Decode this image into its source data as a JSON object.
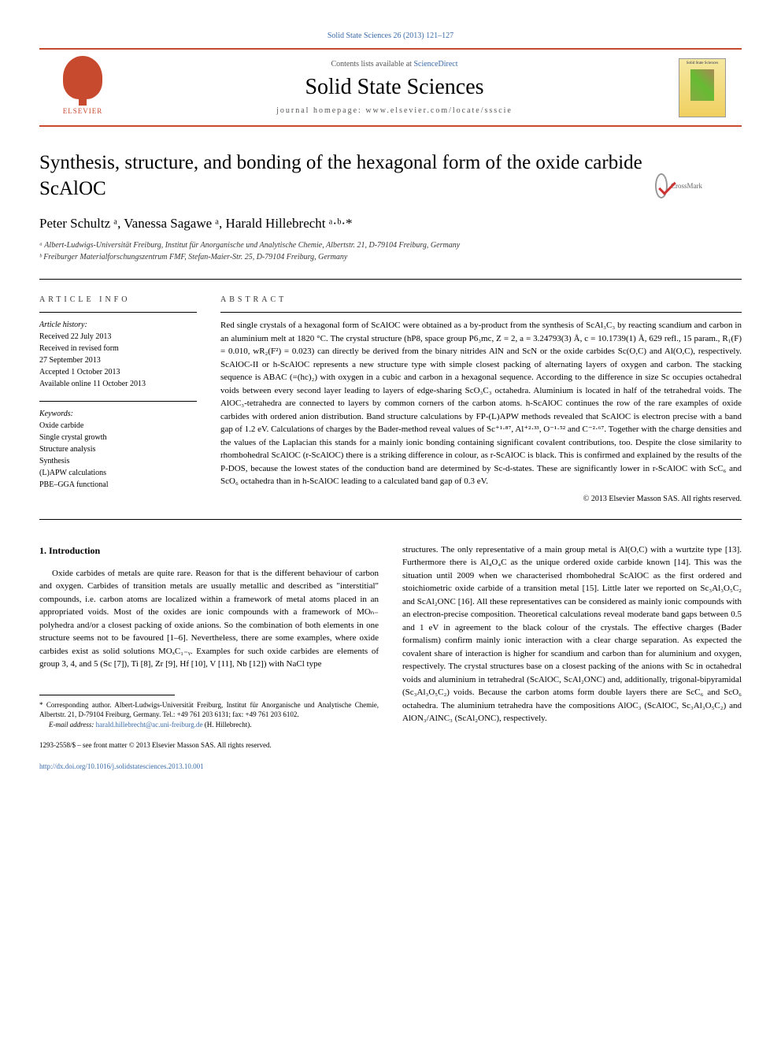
{
  "top_link": "Solid State Sciences 26 (2013) 121–127",
  "header": {
    "contents": "Contents lists available at ",
    "contents_link": "ScienceDirect",
    "journal": "Solid State Sciences",
    "homepage": "journal homepage: www.elsevier.com/locate/ssscie",
    "publisher": "ELSEVIER"
  },
  "crossmark": "CrossMark",
  "title": "Synthesis, structure, and bonding of the hexagonal form of the oxide carbide ScAlOC",
  "authors": "Peter Schultz ᵃ, Vanessa Sagawe ᵃ, Harald Hillebrecht ᵃ·ᵇ·*",
  "affiliations": {
    "a": "ᵃ Albert-Ludwigs-Universität Freiburg, Institut für Anorganische und Analytische Chemie, Albertstr. 21, D-79104 Freiburg, Germany",
    "b": "ᵇ Freiburger Materialforschungszentrum FMF, Stefan-Maier-Str. 25, D-79104 Freiburg, Germany"
  },
  "article_info": {
    "heading": "ARTICLE INFO",
    "history_label": "Article history:",
    "history": "Received 22 July 2013\nReceived in revised form\n27 September 2013\nAccepted 1 October 2013\nAvailable online 11 October 2013",
    "keywords_label": "Keywords:",
    "keywords": "Oxide carbide\nSingle crystal growth\nStructure analysis\nSynthesis\n(L)APW calculations\nPBE–GGA functional"
  },
  "abstract": {
    "heading": "ABSTRACT",
    "text": "Red single crystals of a hexagonal form of ScAlOC were obtained as a by-product from the synthesis of ScAl₃C₃ by reacting scandium and carbon in an aluminium melt at 1820 °C. The crystal structure (hP8, space group P6₃mc, Z = 2, a = 3.24793(3) Å, c = 10.1739(1) Å, 629 refl., 15 param., R₁(F) = 0.010, wR₂(F²) = 0.023) can directly be derived from the binary nitrides AlN and ScN or the oxide carbides Sc(O,C) and Al(O,C), respectively. ScAlOC-II or h-ScAlOC represents a new structure type with simple closest packing of alternating layers of oxygen and carbon. The stacking sequence is ABAC (=(hc)₂) with oxygen in a cubic and carbon in a hexagonal sequence. According to the difference in size Sc occupies octahedral voids between every second layer leading to layers of edge-sharing ScO₃C₃ octahedra. Aluminium is located in half of the tetrahedral voids. The AlOC₃-tetrahedra are connected to layers by common corners of the carbon atoms. h-ScAlOC continues the row of the rare examples of oxide carbides with ordered anion distribution. Band structure calculations by FP-(L)APW methods revealed that ScAlOC is electron precise with a band gap of 1.2 eV. Calculations of charges by the Bader-method reveal values of Sc⁺¹·⁸⁷, Al⁺²·³³, O⁻¹·⁵² and C⁻²·⁶⁷. Together with the charge densities and the values of the Laplacian this stands for a mainly ionic bonding containing significant covalent contributions, too. Despite the close similarity to rhombohedral ScAlOC (r-ScAlOC) there is a striking difference in colour, as r-ScAlOC is black. This is confirmed and explained by the results of the P-DOS, because the lowest states of the conduction band are determined by Sc-d-states. These are significantly lower in r-ScAlOC with ScC₆ and ScO₆ octahedra than in h-ScAlOC leading to a calculated band gap of 0.3 eV.",
    "copyright": "© 2013 Elsevier Masson SAS. All rights reserved."
  },
  "body": {
    "section_heading": "1. Introduction",
    "col1": "Oxide carbides of metals are quite rare. Reason for that is the different behaviour of carbon and oxygen. Carbides of transition metals are usually metallic and described as \"interstitial\" compounds, i.e. carbon atoms are localized within a framework of metal atoms placed in an appropriated voids. Most of the oxides are ionic compounds with a framework of MOₙ₋ polyhedra and/or a closest packing of oxide anions. So the combination of both elements in one structure seems not to be favoured [1–6]. Nevertheless, there are some examples, where oxide carbides exist as solid solutions MOₓC₁₋ᵧ. Examples for such oxide carbides are elements of group 3, 4, and 5 (Sc [7]), Ti [8], Zr [9], Hf [10], V [11], Nb [12]) with NaCl type",
    "col2": "structures. The only representative of a main group metal is Al(O,C) with a wurtzite type [13]. Furthermore there is Al₄O₄C as the unique ordered oxide carbide known [14]. This was the situation until 2009 when we characterised rhombohedral ScAlOC as the first ordered and stoichiometric oxide carbide of a transition metal [15]. Little later we reported on Sc₃Al₃O₅C₂ and ScAl₂ONC [16]. All these representatives can be considered as mainly ionic compounds with an electron-precise composition. Theoretical calculations reveal moderate band gaps between 0.5 and 1 eV in agreement to the black colour of the crystals. The effective charges (Bader formalism) confirm mainly ionic interaction with a clear charge separation. As expected the covalent share of interaction is higher for scandium and carbon than for aluminium and oxygen, respectively. The crystal structures base on a closest packing of the anions with Sc in octahedral voids and aluminium in tetrahedral (ScAlOC, ScAl₂ONC) and, additionally, trigonal-bipyramidal (Sc₃Al₃O₅C₂) voids. Because the carbon atoms form double layers there are ScC₆ and ScO₆ octahedra. The aluminium tetrahedra have the compositions AlOC₃ (ScAlOC, Sc₃Al₃O₅C₂) and AlON₃/AlNC₃ (ScAl₂ONC), respectively."
  },
  "footnote": {
    "corr": "* Corresponding author. Albert-Ludwigs-Universität Freiburg, Institut für Anorganische und Analytische Chemie, Albertstr. 21, D-79104 Freiburg, Germany. Tel.: +49 761 203 6131; fax: +49 761 203 6102.",
    "email_label": "E-mail address: ",
    "email": "harald.hillebrecht@ac.uni-freiburg.de",
    "email_suffix": " (H. Hillebrecht)."
  },
  "bottom": {
    "issn": "1293-2558/$ – see front matter © 2013 Elsevier Masson SAS. All rights reserved.",
    "doi": "http://dx.doi.org/10.1016/j.solidstatesciences.2013.10.001"
  }
}
